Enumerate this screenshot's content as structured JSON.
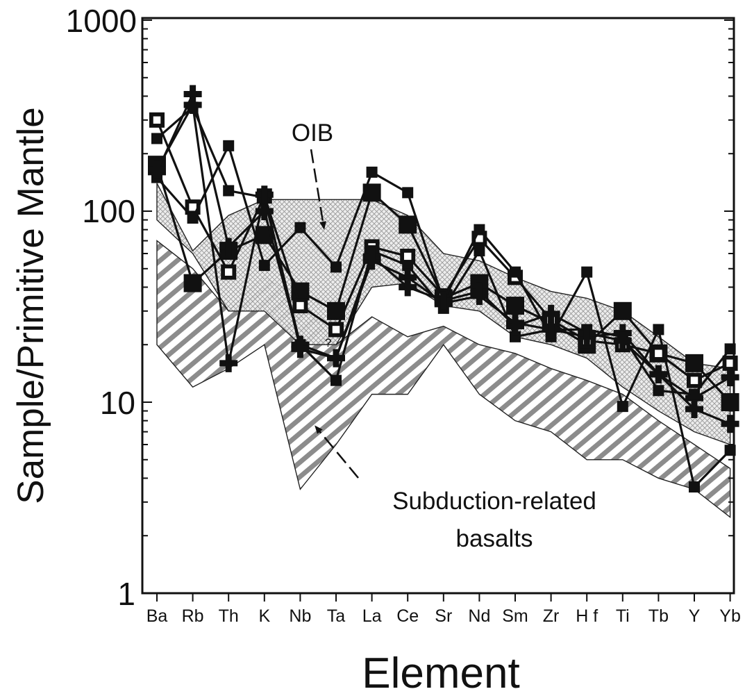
{
  "chart_data": {
    "type": "line",
    "title": "",
    "xlabel": "Element",
    "ylabel": "Sample/Primitive Mantle",
    "y_scale": "log",
    "ylim": [
      1,
      1000
    ],
    "y_ticks": [
      "1",
      "10",
      "100",
      "1000"
    ],
    "categories": [
      "Ba",
      "Rb",
      "Th",
      "K",
      "Nb",
      "Ta",
      "La",
      "Ce",
      "Sr",
      "Nd",
      "Sm",
      "Zr",
      "H f",
      "Ti",
      "Tb",
      "Y",
      "Yb"
    ],
    "fields": [
      {
        "label": "OIB",
        "pattern": "crosshatch",
        "upper": [
          140,
          62,
          95,
          115,
          115,
          115,
          115,
          95,
          60,
          55,
          45,
          38,
          35,
          30,
          22,
          16,
          15
        ],
        "lower": [
          90,
          60,
          30,
          30,
          20,
          20,
          40,
          42,
          32,
          30,
          22,
          20,
          17,
          12,
          9,
          7,
          6
        ]
      },
      {
        "label": "Subduction-related basalts",
        "pattern": "diagonal-stripes",
        "upper": [
          70,
          50,
          30,
          45,
          35,
          20,
          28,
          22,
          25,
          20,
          18,
          15,
          13,
          11,
          8,
          6,
          4.5
        ],
        "lower": [
          20,
          12,
          15,
          20,
          3.5,
          6,
          11,
          11,
          20,
          11,
          8,
          7,
          5,
          5,
          4,
          3.5,
          2.5
        ]
      }
    ],
    "series": [
      {
        "marker": "square-large",
        "values": [
          175,
          42,
          62,
          75,
          38,
          30,
          125,
          85,
          35,
          42,
          32,
          26,
          20,
          30,
          18,
          16,
          10
        ]
      },
      {
        "marker": "square-open",
        "values": [
          300,
          105,
          48,
          120,
          32,
          24,
          65,
          58,
          36,
          72,
          45,
          27,
          21,
          20,
          18,
          13,
          16
        ]
      },
      {
        "marker": "square-small",
        "values": [
          150,
          92,
          220,
          52,
          82,
          51,
          160,
          125,
          34,
          80,
          48,
          22,
          48,
          9.5,
          24,
          3.6,
          5.6
        ]
      },
      {
        "marker": "square-small",
        "values": [
          240,
          350,
          128,
          118,
          20,
          13,
          62,
          52,
          31,
          62,
          22,
          24,
          24,
          22,
          11.5,
          11,
          19
        ]
      },
      {
        "marker": "cross",
        "values": [
          160,
          410,
          65,
          100,
          20,
          17,
          55,
          45,
          33,
          36,
          26,
          24,
          22,
          23,
          14,
          10.5,
          13.5
        ]
      },
      {
        "marker": "cross",
        "values": [
          165,
          360,
          16,
          122,
          19,
          17,
          58,
          40,
          34,
          38,
          25,
          29,
          23,
          21,
          14,
          9.2,
          7.7
        ]
      }
    ],
    "annotations": [
      {
        "text": "OIB"
      },
      {
        "text": "Subduction-related"
      },
      {
        "text": "basalts"
      },
      {
        "text": "?"
      }
    ]
  }
}
